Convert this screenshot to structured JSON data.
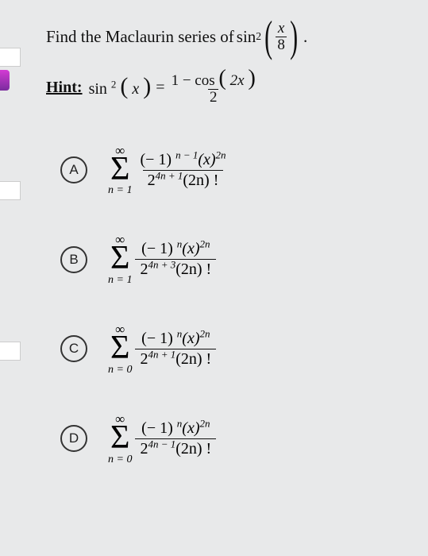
{
  "question": {
    "prefix": "Find the Maclaurin series of ",
    "func": "sin",
    "func_exp": "2",
    "inner_num": "x",
    "inner_den": "8",
    "suffix": "."
  },
  "hint": {
    "label": "Hint:",
    "lhs_func": "sin",
    "lhs_exp": "2",
    "lhs_arg": "x",
    "eq": "=",
    "rhs_num_a": "1",
    "rhs_num_op": "−",
    "rhs_num_b": "cos",
    "rhs_num_arg": "2x",
    "rhs_den": "2"
  },
  "sigma_top": "∞",
  "options": {
    "A": {
      "letter": "A",
      "sum_from": "n = 1",
      "num": "(− 1) ",
      "num_exp": "n − 1",
      "num_tail": "(x)",
      "num_tail_exp": "2n",
      "den_base": "2",
      "den_exp": "4n + 1",
      "den_tail": "(2n) !"
    },
    "B": {
      "letter": "B",
      "sum_from": "n = 1",
      "num": "(− 1) ",
      "num_exp": "n",
      "num_tail": "(x)",
      "num_tail_exp": "2n",
      "den_base": "2",
      "den_exp": "4n + 3",
      "den_tail": "(2n) !"
    },
    "C": {
      "letter": "C",
      "sum_from": "n = 0",
      "num": "(− 1) ",
      "num_exp": "n",
      "num_tail": "(x)",
      "num_tail_exp": "2n",
      "den_base": "2",
      "den_exp": "4n + 1",
      "den_tail": "(2n) !"
    },
    "D": {
      "letter": "D",
      "sum_from": "n = 0",
      "num": "(− 1) ",
      "num_exp": "n",
      "num_tail": "(x)",
      "num_tail_exp": "2n",
      "den_base": "2",
      "den_exp": "4n − 1",
      "den_tail": "(2n) !"
    }
  },
  "colors": {
    "background": "#e8e9ea",
    "text": "#111111",
    "accent": "#9b3bb5",
    "badge_border": "#333333"
  }
}
